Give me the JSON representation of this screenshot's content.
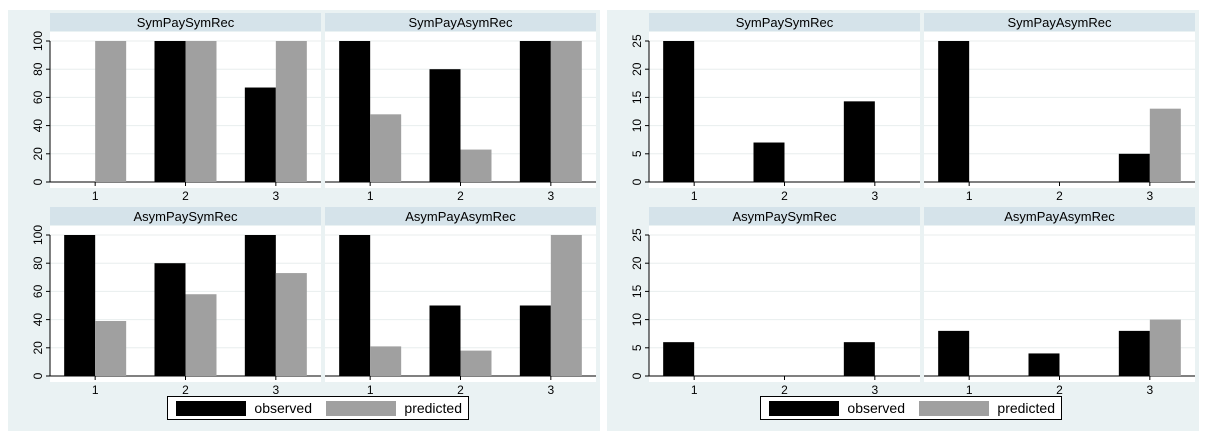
{
  "colors": {
    "observed": "#000000",
    "predicted": "#a0a0a0",
    "panel_header": "#d5e3ea",
    "background": "#eaf2f3"
  },
  "legend": {
    "observed": "observed",
    "predicted": "predicted"
  },
  "chart_data": [
    {
      "type": "bar",
      "panels": [
        {
          "title": "SymPaySymRec",
          "categories": [
            "1",
            "2",
            "3"
          ],
          "series": [
            {
              "name": "observed",
              "values": [
                0,
                100,
                67
              ]
            },
            {
              "name": "predicted",
              "values": [
                100,
                100,
                100
              ]
            }
          ]
        },
        {
          "title": "SymPayAsymRec",
          "categories": [
            "1",
            "2",
            "3"
          ],
          "series": [
            {
              "name": "observed",
              "values": [
                100,
                80,
                100
              ]
            },
            {
              "name": "predicted",
              "values": [
                48,
                23,
                100
              ]
            }
          ]
        },
        {
          "title": "AsymPaySymRec",
          "categories": [
            "1",
            "2",
            "3"
          ],
          "series": [
            {
              "name": "observed",
              "values": [
                100,
                80,
                100
              ]
            },
            {
              "name": "predicted",
              "values": [
                39,
                58,
                73
              ]
            }
          ]
        },
        {
          "title": "AsymPayAsymRec",
          "categories": [
            "1",
            "2",
            "3"
          ],
          "series": [
            {
              "name": "observed",
              "values": [
                100,
                50,
                50
              ]
            },
            {
              "name": "predicted",
              "values": [
                21,
                18,
                100
              ]
            }
          ]
        }
      ],
      "ylim": [
        0,
        100
      ],
      "yticks": [
        0,
        20,
        40,
        60,
        80,
        100
      ],
      "legend_position": "bottom"
    },
    {
      "type": "bar",
      "panels": [
        {
          "title": "SymPaySymRec",
          "categories": [
            "1",
            "2",
            "3"
          ],
          "series": [
            {
              "name": "observed",
              "values": [
                25,
                7,
                14.3
              ]
            },
            {
              "name": "predicted",
              "values": [
                0,
                0,
                0
              ]
            }
          ]
        },
        {
          "title": "SymPayAsymRec",
          "categories": [
            "1",
            "2",
            "3"
          ],
          "series": [
            {
              "name": "observed",
              "values": [
                25,
                0,
                5
              ]
            },
            {
              "name": "predicted",
              "values": [
                0,
                0,
                13
              ]
            }
          ]
        },
        {
          "title": "AsymPaySymRec",
          "categories": [
            "1",
            "2",
            "3"
          ],
          "series": [
            {
              "name": "observed",
              "values": [
                6,
                0,
                6
              ]
            },
            {
              "name": "predicted",
              "values": [
                0,
                0,
                0
              ]
            }
          ]
        },
        {
          "title": "AsymPayAsymRec",
          "categories": [
            "1",
            "2",
            "3"
          ],
          "series": [
            {
              "name": "observed",
              "values": [
                8,
                4,
                8
              ]
            },
            {
              "name": "predicted",
              "values": [
                0,
                0,
                10
              ]
            }
          ]
        }
      ],
      "ylim": [
        0,
        25
      ],
      "yticks": [
        0,
        5,
        10,
        15,
        20,
        25
      ],
      "legend_position": "bottom"
    }
  ]
}
